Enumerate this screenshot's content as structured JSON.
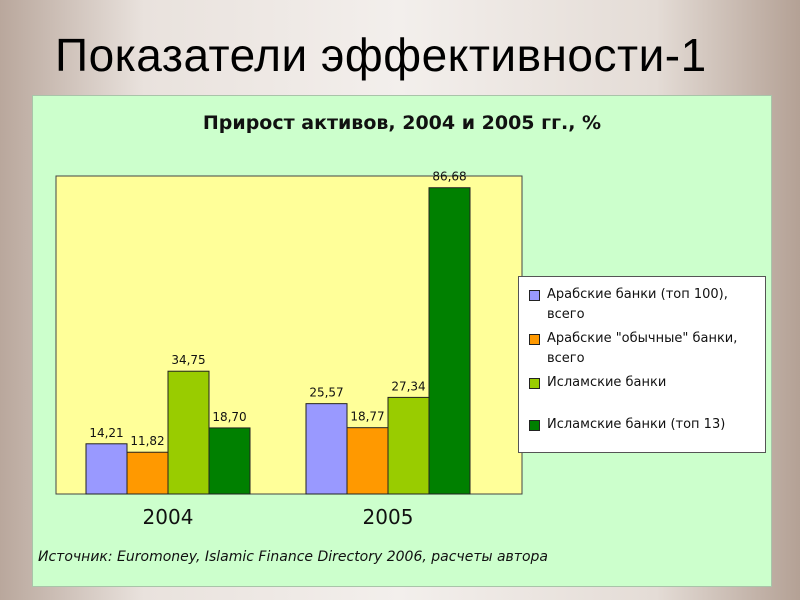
{
  "slide": {
    "title": "Показатели эффективности-1"
  },
  "source_note": "Источник: Euromoney, Islamic Finance Directory 2006, расчеты автора",
  "colors": {
    "panel_bg": "#ccffcc",
    "plot_bg": "#ffff99"
  },
  "chart_data": {
    "type": "bar",
    "title": "Прирост активов, 2004 и 2005 гг., %",
    "xlabel": "",
    "ylabel": "",
    "categories": [
      "2004",
      "2005"
    ],
    "ylim": [
      0,
      90
    ],
    "grid": false,
    "legend_position": "right",
    "series": [
      {
        "name": "Арабские банки (топ 100), всего",
        "color": "#9999ff",
        "values": [
          14.21,
          25.57
        ],
        "labels": [
          "14,21",
          "25,57"
        ]
      },
      {
        "name": "Арабские \"обычные\" банки, всего",
        "color": "#ff9900",
        "values": [
          11.82,
          18.77
        ],
        "labels": [
          "11,82",
          "18,77"
        ]
      },
      {
        "name": "Исламские банки",
        "color": "#99cc00",
        "values": [
          34.75,
          27.34
        ],
        "labels": [
          "34,75",
          "27,34"
        ]
      },
      {
        "name": "Исламские банки (топ 13)",
        "color": "#008000",
        "values": [
          18.7,
          86.68
        ],
        "labels": [
          "18,70",
          "86,68"
        ]
      }
    ]
  }
}
